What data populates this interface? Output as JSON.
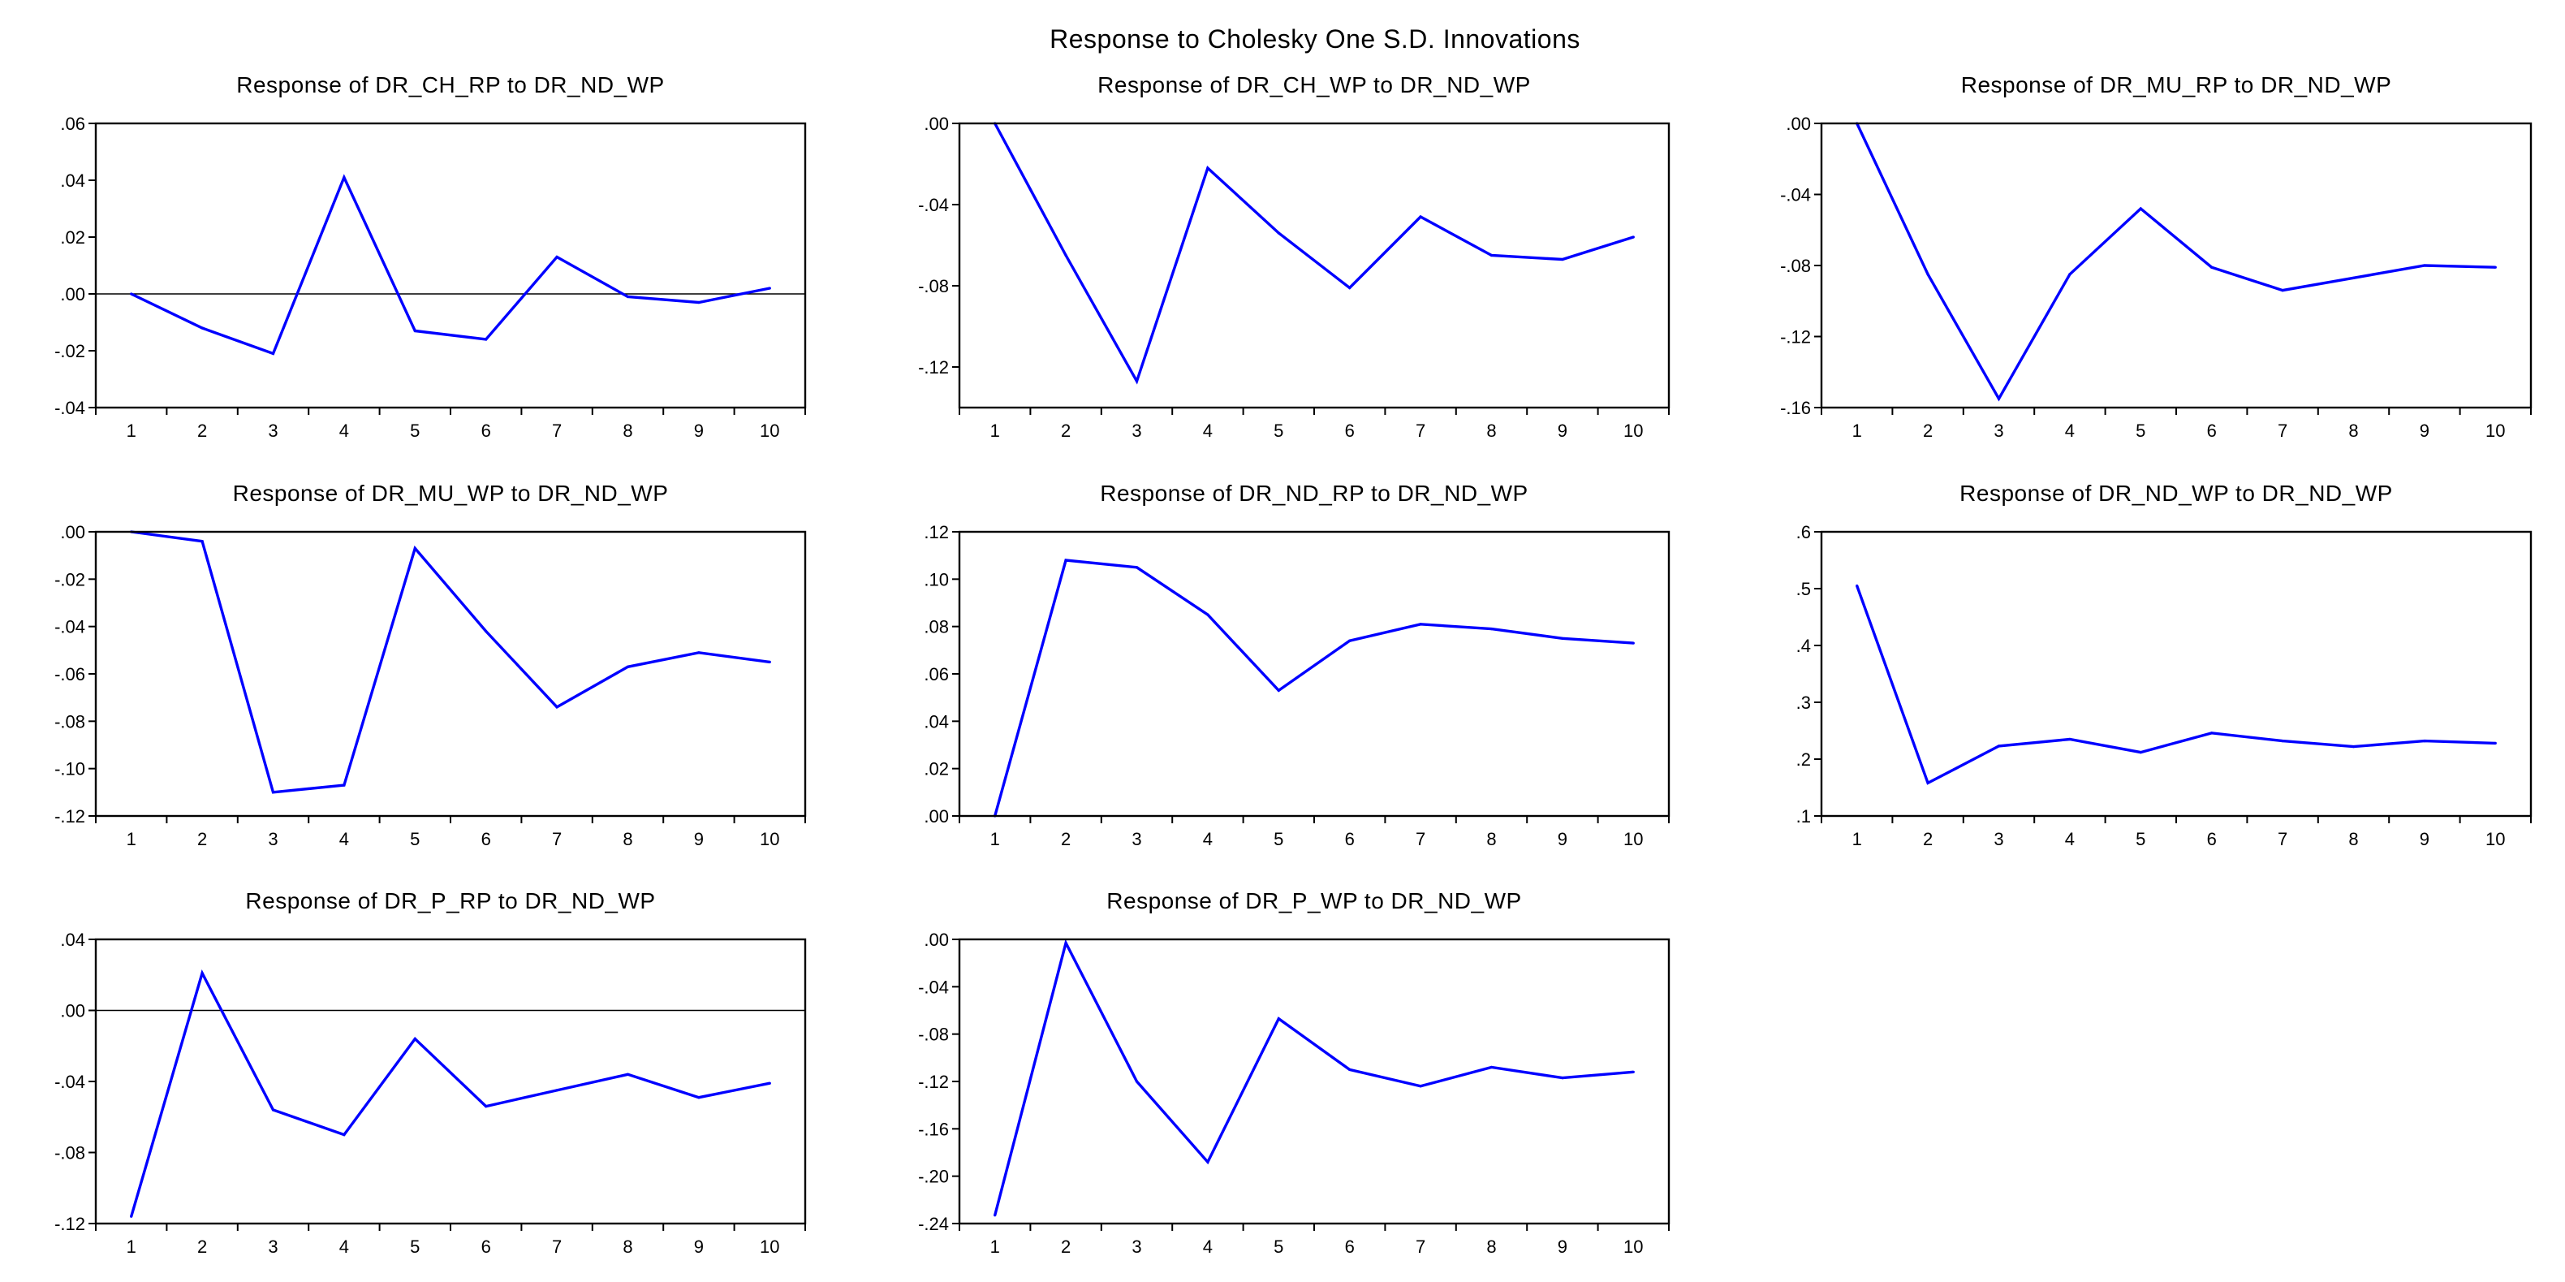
{
  "figure_title": "Response to Cholesky One S.D. Innovations",
  "chart_data": [
    {
      "type": "line",
      "title": "Response of DR_CH_RP to DR_ND_WP",
      "x": [
        1,
        2,
        3,
        4,
        5,
        6,
        7,
        8,
        9,
        10
      ],
      "categories": [
        "1",
        "2",
        "3",
        "4",
        "5",
        "6",
        "7",
        "8",
        "9",
        "10"
      ],
      "series": [
        {
          "name": "DR_CH_RP",
          "color": "#0000ff",
          "values": [
            0.0,
            -0.012,
            -0.021,
            0.041,
            -0.013,
            -0.016,
            0.013,
            -0.001,
            -0.003,
            0.002
          ]
        }
      ],
      "ylim": [
        -0.04,
        0.06
      ],
      "yticks": [
        -0.04,
        -0.02,
        0.0,
        0.02,
        0.04,
        0.06
      ],
      "ytick_labels": [
        "-.04",
        "-.02",
        ".00",
        ".02",
        ".04",
        ".06"
      ],
      "zero_line": true,
      "xlabel": "",
      "ylabel": ""
    },
    {
      "type": "line",
      "title": "Response of DR_CH_WP to DR_ND_WP",
      "x": [
        1,
        2,
        3,
        4,
        5,
        6,
        7,
        8,
        9,
        10
      ],
      "categories": [
        "1",
        "2",
        "3",
        "4",
        "5",
        "6",
        "7",
        "8",
        "9",
        "10"
      ],
      "series": [
        {
          "name": "DR_CH_WP",
          "color": "#0000ff",
          "values": [
            0.0,
            -0.065,
            -0.127,
            -0.022,
            -0.054,
            -0.081,
            -0.046,
            -0.065,
            -0.067,
            -0.056
          ]
        }
      ],
      "ylim": [
        -0.14,
        0.0
      ],
      "yticks": [
        -0.12,
        -0.08,
        -0.04,
        0.0
      ],
      "ytick_labels": [
        "-.12",
        "-.08",
        "-.04",
        ".00"
      ],
      "zero_line": false,
      "xlabel": "",
      "ylabel": ""
    },
    {
      "type": "line",
      "title": "Response of DR_MU_RP to DR_ND_WP",
      "x": [
        1,
        2,
        3,
        4,
        5,
        6,
        7,
        8,
        9,
        10
      ],
      "categories": [
        "1",
        "2",
        "3",
        "4",
        "5",
        "6",
        "7",
        "8",
        "9",
        "10"
      ],
      "series": [
        {
          "name": "DR_MU_RP",
          "color": "#0000ff",
          "values": [
            0.0,
            -0.085,
            -0.155,
            -0.085,
            -0.048,
            -0.081,
            -0.094,
            -0.087,
            -0.08,
            -0.081
          ]
        }
      ],
      "ylim": [
        -0.16,
        0.0
      ],
      "yticks": [
        -0.16,
        -0.12,
        -0.08,
        -0.04,
        0.0
      ],
      "ytick_labels": [
        "-.16",
        "-.12",
        "-.08",
        "-.04",
        ".00"
      ],
      "zero_line": false,
      "xlabel": "",
      "ylabel": ""
    },
    {
      "type": "line",
      "title": "Response of DR_MU_WP to DR_ND_WP",
      "x": [
        1,
        2,
        3,
        4,
        5,
        6,
        7,
        8,
        9,
        10
      ],
      "categories": [
        "1",
        "2",
        "3",
        "4",
        "5",
        "6",
        "7",
        "8",
        "9",
        "10"
      ],
      "series": [
        {
          "name": "DR_MU_WP",
          "color": "#0000ff",
          "values": [
            0.0,
            -0.004,
            -0.11,
            -0.107,
            -0.007,
            -0.042,
            -0.074,
            -0.057,
            -0.051,
            -0.055
          ]
        }
      ],
      "ylim": [
        -0.12,
        0.0
      ],
      "yticks": [
        -0.12,
        -0.1,
        -0.08,
        -0.06,
        -0.04,
        -0.02,
        0.0
      ],
      "ytick_labels": [
        "-.12",
        "-.10",
        "-.08",
        "-.06",
        "-.04",
        "-.02",
        ".00"
      ],
      "zero_line": false,
      "xlabel": "",
      "ylabel": ""
    },
    {
      "type": "line",
      "title": "Response of DR_ND_RP to DR_ND_WP",
      "x": [
        1,
        2,
        3,
        4,
        5,
        6,
        7,
        8,
        9,
        10
      ],
      "categories": [
        "1",
        "2",
        "3",
        "4",
        "5",
        "6",
        "7",
        "8",
        "9",
        "10"
      ],
      "series": [
        {
          "name": "DR_ND_RP",
          "color": "#0000ff",
          "values": [
            0.0,
            0.108,
            0.105,
            0.085,
            0.053,
            0.074,
            0.081,
            0.079,
            0.075,
            0.073
          ]
        }
      ],
      "ylim": [
        0.0,
        0.12
      ],
      "yticks": [
        0.0,
        0.02,
        0.04,
        0.06,
        0.08,
        0.1,
        0.12
      ],
      "ytick_labels": [
        ".00",
        ".02",
        ".04",
        ".06",
        ".08",
        ".10",
        ".12"
      ],
      "zero_line": false,
      "xlabel": "",
      "ylabel": ""
    },
    {
      "type": "line",
      "title": "Response of DR_ND_WP to DR_ND_WP",
      "x": [
        1,
        2,
        3,
        4,
        5,
        6,
        7,
        8,
        9,
        10
      ],
      "categories": [
        "1",
        "2",
        "3",
        "4",
        "5",
        "6",
        "7",
        "8",
        "9",
        "10"
      ],
      "series": [
        {
          "name": "DR_ND_WP",
          "color": "#0000ff",
          "values": [
            0.505,
            0.158,
            0.223,
            0.235,
            0.212,
            0.246,
            0.232,
            0.222,
            0.232,
            0.228
          ]
        }
      ],
      "ylim": [
        0.1,
        0.6
      ],
      "yticks": [
        0.1,
        0.2,
        0.3,
        0.4,
        0.5,
        0.6
      ],
      "ytick_labels": [
        ".1",
        ".2",
        ".3",
        ".4",
        ".5",
        ".6"
      ],
      "zero_line": false,
      "xlabel": "",
      "ylabel": ""
    },
    {
      "type": "line",
      "title": "Response of DR_P_RP to DR_ND_WP",
      "x": [
        1,
        2,
        3,
        4,
        5,
        6,
        7,
        8,
        9,
        10
      ],
      "categories": [
        "1",
        "2",
        "3",
        "4",
        "5",
        "6",
        "7",
        "8",
        "9",
        "10"
      ],
      "series": [
        {
          "name": "DR_P_RP",
          "color": "#0000ff",
          "values": [
            -0.116,
            0.021,
            -0.056,
            -0.07,
            -0.016,
            -0.054,
            -0.045,
            -0.036,
            -0.049,
            -0.041
          ]
        }
      ],
      "ylim": [
        -0.12,
        0.04
      ],
      "yticks": [
        -0.12,
        -0.08,
        -0.04,
        0.0,
        0.04
      ],
      "ytick_labels": [
        "-.12",
        "-.08",
        "-.04",
        ".00",
        ".04"
      ],
      "zero_line": true,
      "xlabel": "",
      "ylabel": ""
    },
    {
      "type": "line",
      "title": "Response of DR_P_WP to DR_ND_WP",
      "x": [
        1,
        2,
        3,
        4,
        5,
        6,
        7,
        8,
        9,
        10
      ],
      "categories": [
        "1",
        "2",
        "3",
        "4",
        "5",
        "6",
        "7",
        "8",
        "9",
        "10"
      ],
      "series": [
        {
          "name": "DR_P_WP",
          "color": "#0000ff",
          "values": [
            -0.233,
            -0.003,
            -0.12,
            -0.188,
            -0.067,
            -0.11,
            -0.124,
            -0.108,
            -0.117,
            -0.112
          ]
        }
      ],
      "ylim": [
        -0.24,
        0.0
      ],
      "yticks": [
        -0.24,
        -0.2,
        -0.16,
        -0.12,
        -0.08,
        -0.04,
        0.0
      ],
      "ytick_labels": [
        "-.24",
        "-.20",
        "-.16",
        "-.12",
        "-.08",
        "-.04",
        ".00"
      ],
      "zero_line": false,
      "xlabel": "",
      "ylabel": ""
    }
  ]
}
